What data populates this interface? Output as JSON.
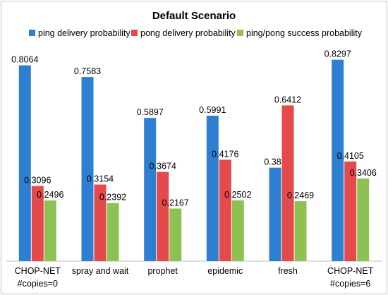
{
  "chart_data": {
    "type": "bar",
    "title": "Default Scenario",
    "categories": [
      [
        "CHOP-NET",
        "#copies=0"
      ],
      [
        "spray and wait"
      ],
      [
        "prophet"
      ],
      [
        "epidemic"
      ],
      [
        "fresh"
      ],
      [
        "CHOP-NET",
        "#copies=6"
      ]
    ],
    "series": [
      {
        "name": "ping delivery probability",
        "color": "#2e7fd1",
        "values": [
          0.8064,
          0.7583,
          0.5897,
          0.5991,
          0.385,
          0.8297
        ],
        "labels": [
          "0.8064",
          "0.7583",
          "0.5897",
          "0.5991",
          "0.385",
          "0.8297"
        ]
      },
      {
        "name": "pong delivery probability",
        "color": "#e4494b",
        "values": [
          0.3096,
          0.3154,
          0.3674,
          0.4176,
          0.6412,
          0.4105
        ],
        "labels": [
          "0.3096",
          "0.3154",
          "0.3674",
          "0.4176",
          "0.6412",
          "0.4105"
        ]
      },
      {
        "name": "ping/pong success probability",
        "color": "#8dc152",
        "values": [
          0.2496,
          0.2392,
          0.2167,
          0.2502,
          0.2469,
          0.3406
        ],
        "labels": [
          "0.2496",
          "0.2392",
          "0.2167",
          "0.2502",
          "0.2469",
          "0.3406"
        ]
      }
    ],
    "xlabel": "",
    "ylabel": "",
    "ylim": [
      0,
      1
    ],
    "grid": false,
    "legend": "top"
  }
}
